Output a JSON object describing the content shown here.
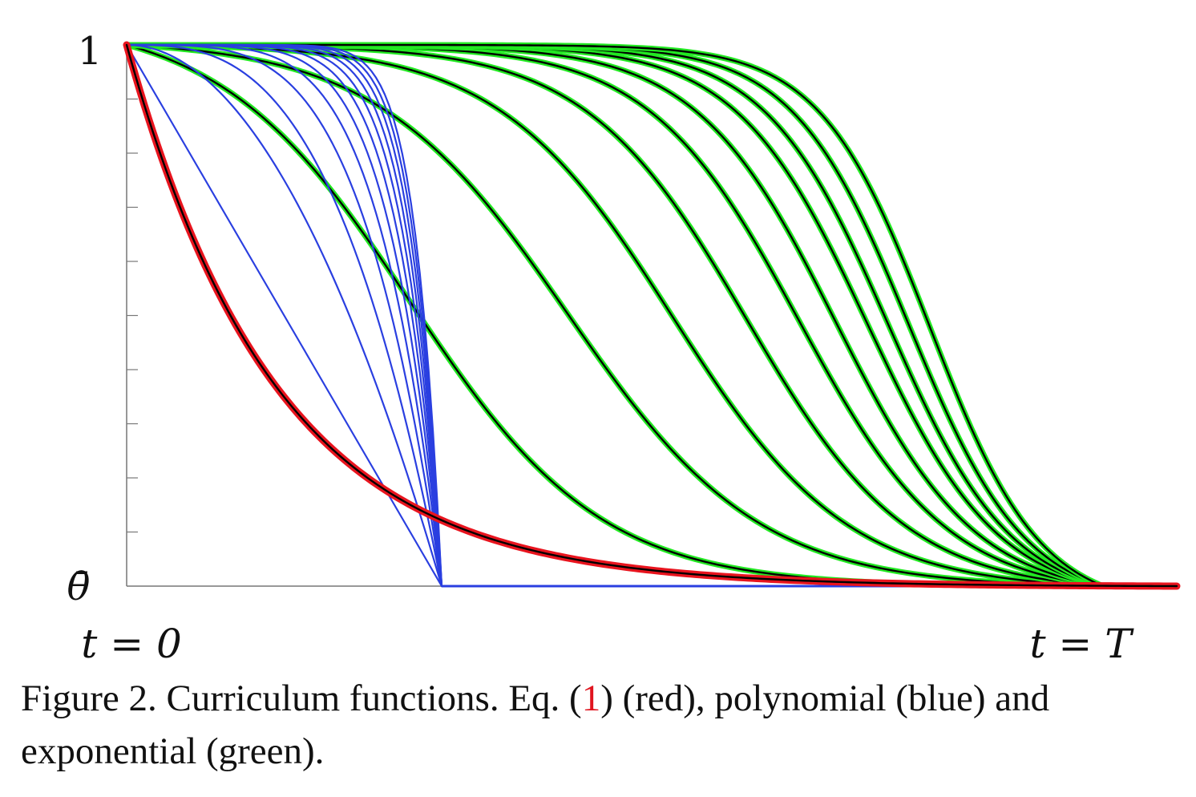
{
  "chart_data": {
    "type": "line",
    "title": "",
    "xlabel": "",
    "ylabel": "",
    "x_tick_labels": {
      "start": "t = 0",
      "end": "t = T"
    },
    "y_tick_labels": {
      "top": "1",
      "bottom": "θ̄"
    },
    "xlim": [
      0,
      1
    ],
    "ylim": [
      0,
      1
    ],
    "y_minor_ticks": 10,
    "grid": false,
    "legend": "none",
    "series": [
      {
        "group": "red",
        "color": "#e8141e",
        "outline": "#000000",
        "kind": "eq1",
        "x_end": 1.0,
        "k": 7.0
      },
      {
        "group": "blue",
        "color": "#2a3fe0",
        "kind": "polynomial",
        "x_end": 0.3,
        "powers": [
          1,
          2,
          3,
          4,
          5,
          6,
          7,
          8,
          9,
          10,
          11,
          12
        ]
      },
      {
        "group": "green",
        "color": "#22e822",
        "outline": "#000000",
        "kind": "exponential",
        "x_end": 0.93,
        "curves": [
          {
            "mid": 0.27,
            "k": 11
          },
          {
            "mid": 0.42,
            "k": 11
          },
          {
            "mid": 0.52,
            "k": 12
          },
          {
            "mid": 0.59,
            "k": 13
          },
          {
            "mid": 0.64,
            "k": 14
          },
          {
            "mid": 0.675,
            "k": 15
          },
          {
            "mid": 0.705,
            "k": 16
          },
          {
            "mid": 0.725,
            "k": 17
          },
          {
            "mid": 0.745,
            "k": 18
          },
          {
            "mid": 0.765,
            "k": 19
          }
        ]
      }
    ]
  },
  "caption": {
    "label": "Figure 2.",
    "text_before": "Curriculum functions.  Eq.  (",
    "ref": "1",
    "text_after": ") (red), polynomial (blue) and exponential (green)."
  }
}
